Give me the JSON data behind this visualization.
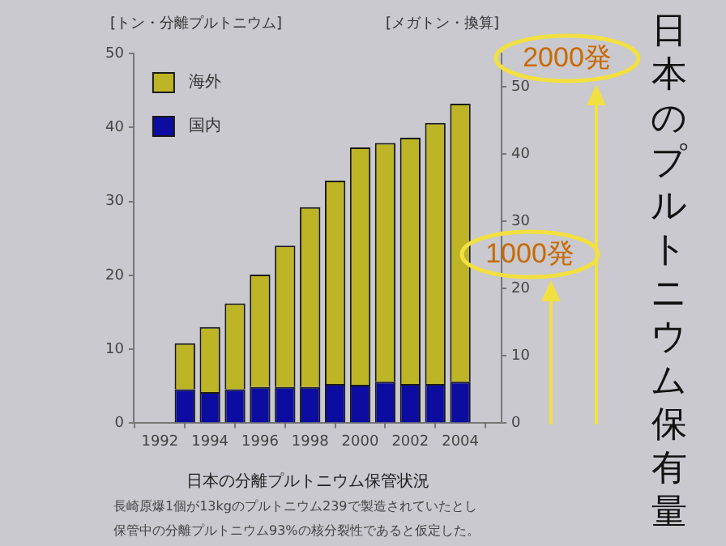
{
  "chart_data": {
    "type": "bar",
    "title": "日本のプルトニウム保有量",
    "subtitle": "日本の分離プルトニウム保管状況",
    "ylabel": "[トン・分離プルトニウム]",
    "y2label": "[メガトン・換算]",
    "x": [
      1993,
      1994,
      1995,
      1996,
      1997,
      1998,
      1999,
      2000,
      2001,
      2002,
      2003,
      2004
    ],
    "series": [
      {
        "name": "国内",
        "color": "#0c0ca0",
        "values": [
          4.6,
          4.2,
          4.6,
          4.9,
          4.9,
          4.9,
          5.3,
          5.2,
          5.6,
          5.3,
          5.3,
          5.6
        ]
      },
      {
        "name": "海外",
        "color": "#bdb426",
        "values": [
          6.2,
          8.8,
          11.6,
          15.2,
          19.1,
          24.3,
          27.5,
          32.1,
          32.3,
          33.3,
          35.3,
          37.6
        ]
      }
    ],
    "stacked": true,
    "xlim": [
      1992,
      2004.6
    ],
    "xticks": [
      1992,
      1994,
      1996,
      1998,
      2000,
      2002,
      2004
    ],
    "ylim": [
      0,
      50
    ],
    "yticks": [
      0,
      10,
      20,
      30,
      40,
      50
    ],
    "y2lim": [
      0,
      55
    ],
    "y2ticks": [
      0,
      10,
      20,
      30,
      40,
      50
    ],
    "grid": false,
    "legend": "top left",
    "annotations": [
      "1000発",
      "2000発",
      "長崎原爆1個が13kgのプルトニウム239で製造されていたとし",
      "保管中の分離プルトニウム93%の核分裂性であると仮定した。"
    ]
  }
}
